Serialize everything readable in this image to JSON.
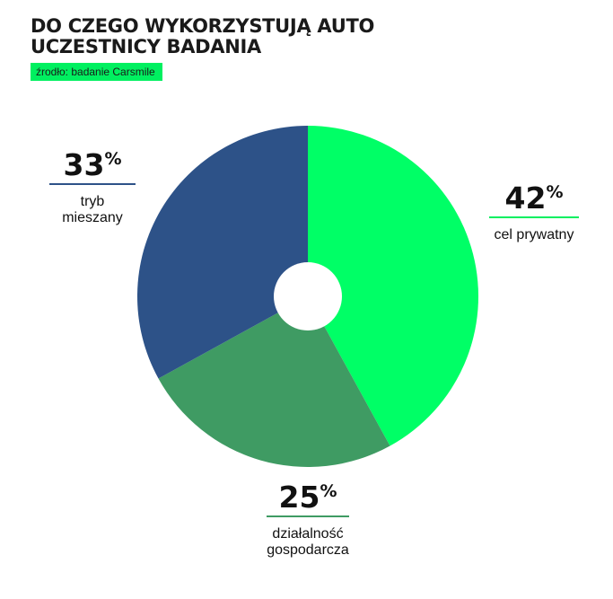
{
  "header": {
    "title_line1": "DO CZEGO WYKORZYSTUJĄ AUTO",
    "title_line2": "UCZESTNICY BADANIA",
    "source": "źrodło: badanie Carsmile"
  },
  "chart_data": {
    "type": "pie",
    "categories": [
      "cel prywatny",
      "działalność gospodarcza",
      "tryb mieszany"
    ],
    "label_lines": [
      [
        "cel prywatny"
      ],
      [
        "działalność",
        "gospodarcza"
      ],
      [
        "tryb",
        "mieszany"
      ]
    ],
    "values": [
      42,
      25,
      33
    ],
    "value_suffix": "%",
    "colors": [
      "#00ff66",
      "#3f9b63",
      "#2d5288"
    ],
    "line_colors": [
      "#00f060",
      "#3f9b63",
      "#2d5288"
    ],
    "donut_hole": true
  }
}
